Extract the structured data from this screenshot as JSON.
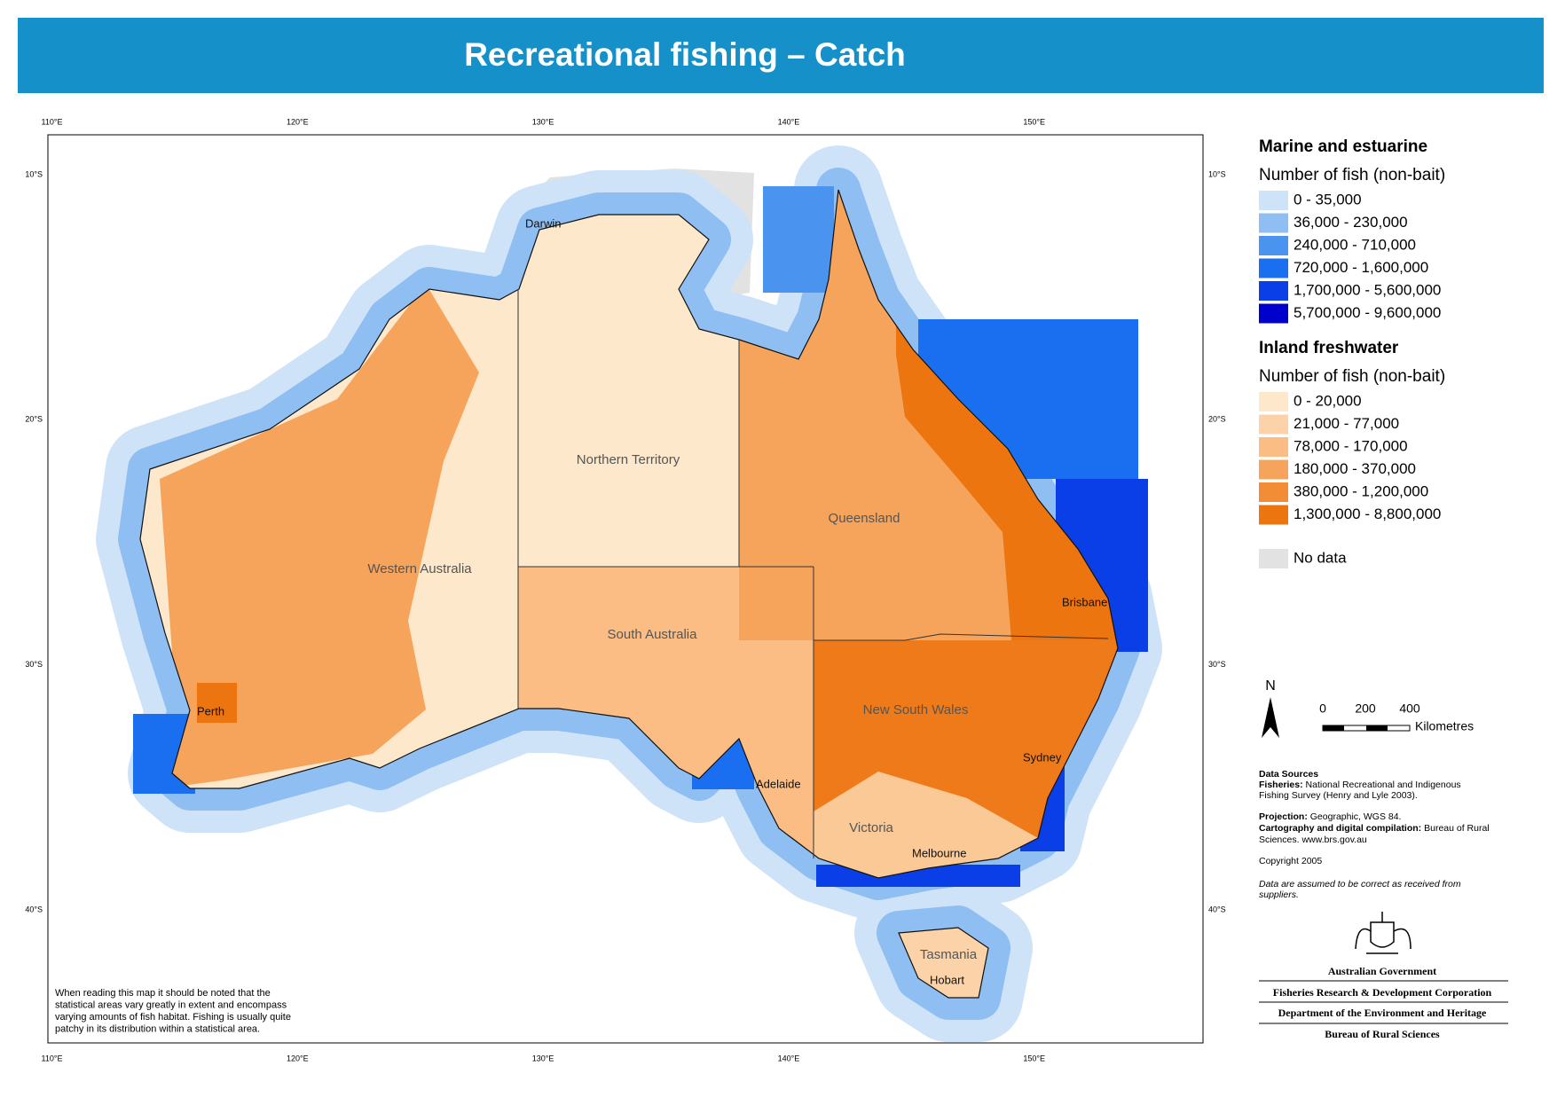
{
  "title": "Recreational fishing – Catch",
  "map": {
    "lon_ticks": [
      "110°E",
      "120°E",
      "130°E",
      "140°E",
      "150°E"
    ],
    "lat_ticks": [
      "10°S",
      "20°S",
      "30°S",
      "40°S"
    ],
    "states": [
      "Northern Territory",
      "Western Australia",
      "Queensland",
      "South Australia",
      "New South Wales",
      "Victoria",
      "Tasmania"
    ],
    "cities": [
      "Darwin",
      "Perth",
      "Adelaide",
      "Melbourne",
      "Sydney",
      "Brisbane",
      "Hobart"
    ],
    "note": [
      "When reading this map it should be noted that the",
      "statistical areas vary greatly in extent and encompass",
      "varying amounts of fish habitat. Fishing is usually quite",
      "patchy in its distribution within a statistical area."
    ]
  },
  "legend": {
    "sections": [
      {
        "heading": "Marine and estuarine",
        "subheading": "Number of fish (non-bait)",
        "items": [
          {
            "label": "0 - 35,000",
            "color": "#cfe3f8"
          },
          {
            "label": "36,000 - 230,000",
            "color": "#8fbef2"
          },
          {
            "label": "240,000 - 710,000",
            "color": "#4a93ee"
          },
          {
            "label": "720,000 - 1,600,000",
            "color": "#1a6ff0"
          },
          {
            "label": "1,700,000 - 5,600,000",
            "color": "#0a3ee6"
          },
          {
            "label": "5,700,000 - 9,600,000",
            "color": "#0000cc"
          }
        ]
      },
      {
        "heading": "Inland freshwater",
        "subheading": "Number of fish (non-bait)",
        "items": [
          {
            "label": "0 - 20,000",
            "color": "#fde8cc"
          },
          {
            "label": "21,000 - 77,000",
            "color": "#fcd3a8"
          },
          {
            "label": "78,000 - 170,000",
            "color": "#fbbd84"
          },
          {
            "label": "180,000 - 370,000",
            "color": "#f6a45c"
          },
          {
            "label": "380,000 - 1,200,000",
            "color": "#f28d36"
          },
          {
            "label": "1,300,000 - 8,800,000",
            "color": "#ec7510"
          }
        ]
      }
    ],
    "no_data": {
      "label": "No data",
      "color": "#e2e2e2"
    }
  },
  "scale_bar": {
    "north": "N",
    "labels": [
      "0",
      "200",
      "400"
    ],
    "unit": "Kilometres"
  },
  "data_sources": {
    "heading": "Data Sources",
    "fisheries_label": "Fisheries:",
    "fisheries": [
      "National Recreational and Indigenous",
      "Fishing Survey (Henry and Lyle 2003)."
    ],
    "projection_label": "Projection:",
    "projection": "Geographic, WGS 84.",
    "cartography_label": "Cartography and digital compilation:",
    "cartography": [
      "Bureau of Rural",
      "Sciences. www.brs.gov.au"
    ],
    "copyright": "Copyright 2005",
    "disclaimer": [
      "Data are assumed to be correct as received from",
      "suppliers."
    ]
  },
  "agencies": [
    "Australian Government",
    "Fisheries Research & Development Corporation",
    "Department of the Environment and Heritage",
    "Bureau of Rural Sciences"
  ]
}
